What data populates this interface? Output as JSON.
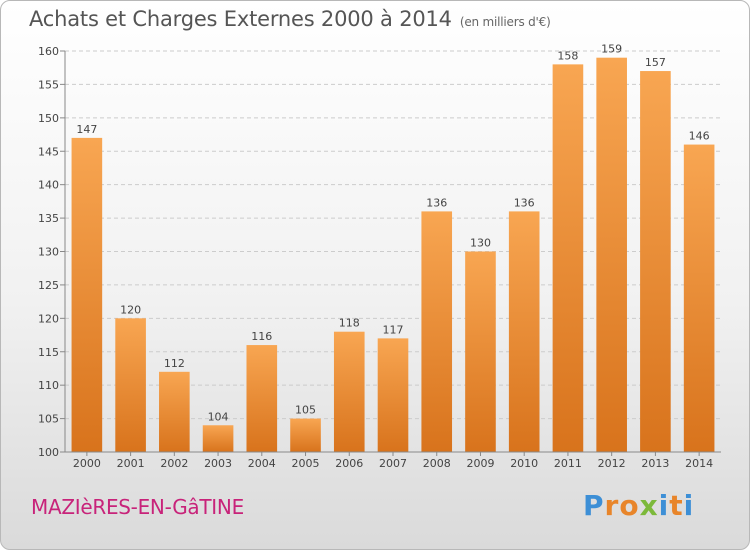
{
  "header": {
    "title": "Achats et Charges Externes 2000 à 2014",
    "unit_note": "(en milliers d'€)"
  },
  "footer": {
    "commune": "MAZIèRES-EN-GâTINE",
    "logo_letters": [
      "P",
      "r",
      "o",
      "x",
      "i",
      "t",
      "i"
    ],
    "logo_colors": [
      "#3d8fd6",
      "#e8852a",
      "#e8852a",
      "#7cb93a",
      "#3d8fd6",
      "#e8852a",
      "#3d8fd6"
    ]
  },
  "colors": {
    "bar_top": "#f8a652",
    "bar_bottom": "#d8731c",
    "grid": "#cccccc",
    "text": "#444444"
  },
  "chart_data": {
    "type": "bar",
    "title": "Achats et Charges Externes 2000 à 2014",
    "subtitle": "(en milliers d'€)",
    "xlabel": "",
    "ylabel": "",
    "categories": [
      "2000",
      "2001",
      "2002",
      "2003",
      "2004",
      "2005",
      "2006",
      "2007",
      "2008",
      "2009",
      "2010",
      "2011",
      "2012",
      "2013",
      "2014"
    ],
    "values": [
      147,
      120,
      112,
      104,
      116,
      105,
      118,
      117,
      136,
      130,
      136,
      158,
      159,
      157,
      146
    ],
    "ylim": [
      100,
      160
    ],
    "yticks": [
      100,
      105,
      110,
      115,
      120,
      125,
      130,
      135,
      140,
      145,
      150,
      155,
      160
    ],
    "grid": true,
    "data_labels": true
  }
}
